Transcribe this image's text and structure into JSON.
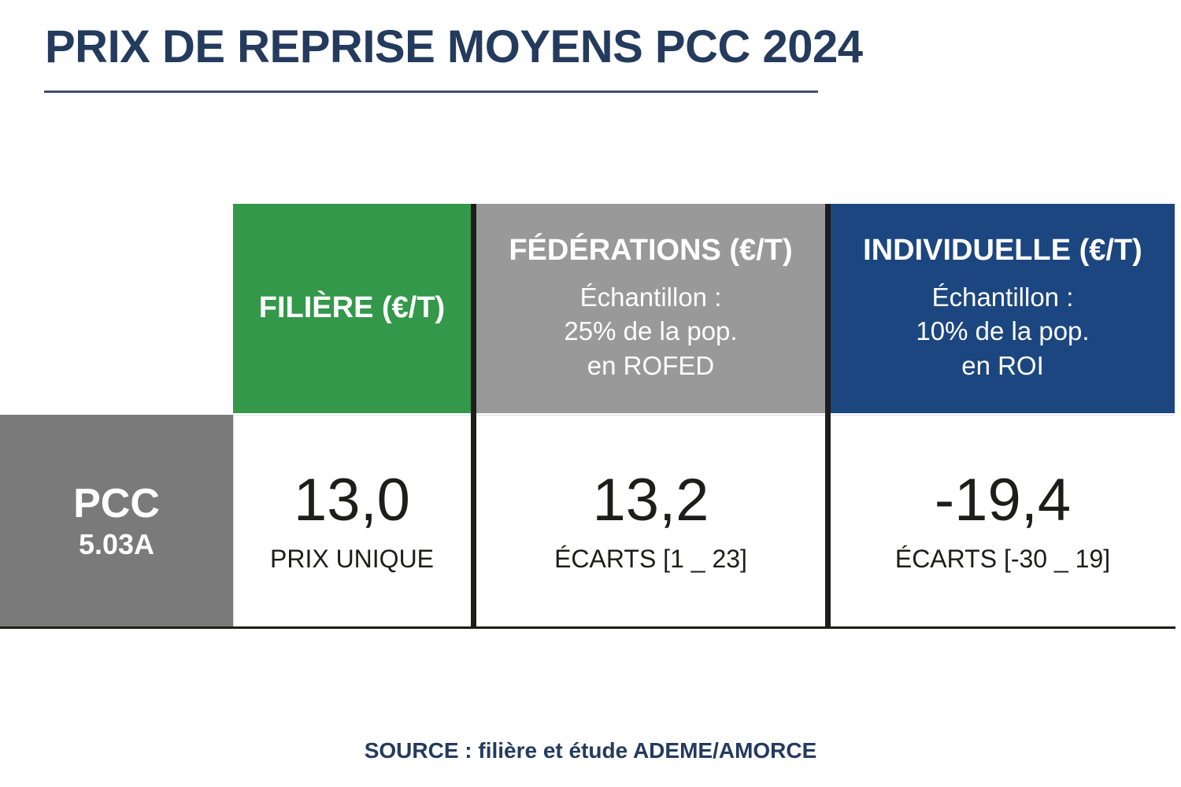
{
  "header": {
    "title": "PRIX DE REPRISE MOYENS PCC 2024"
  },
  "table": {
    "columns": [
      {
        "label": "FILIÈRE (€/T)",
        "color": "#33984a",
        "subtitle_lines": []
      },
      {
        "label": "FÉDÉRATIONS (€/T)",
        "color": "#999999",
        "subtitle_lines": [
          "Échantillon :",
          "25% de la pop.",
          "en ROFED"
        ]
      },
      {
        "label": "INDIVIDUELLE (€/T)",
        "color": "#1c4680",
        "subtitle_lines": [
          "Échantillon :",
          "10% de la pop.",
          "en ROI"
        ]
      }
    ],
    "row": {
      "label": "PCC",
      "sublabel": "5.03A",
      "label_bg": "#7a7a7a",
      "cells": [
        {
          "value": "13,0",
          "note": "PRIX UNIQUE"
        },
        {
          "value": "13,2",
          "note": "ÉCARTS [1 _ 23]"
        },
        {
          "value": "-19,4",
          "note": "ÉCARTS [-30 _ 19]"
        }
      ]
    },
    "divider_color": "#1d1d1b"
  },
  "footer": {
    "source": "SOURCE : filière et étude ADEME/AMORCE"
  },
  "colors": {
    "title_navy": "#243b5e",
    "underline": "#3e5070",
    "green": "#33984a",
    "header_gray": "#999999",
    "blue": "#1c4680",
    "row_label_gray": "#7a7a7a",
    "divider_dark": "#1d1d1b",
    "value_text": "#1d1d1b"
  },
  "chart_data": {
    "type": "table",
    "title": "PRIX DE REPRISE MOYENS PCC 2024",
    "columns": [
      "FILIÈRE (€/T)",
      "FÉDÉRATIONS (€/T)",
      "INDIVIDUELLE (€/T)"
    ],
    "column_subtitles": [
      "",
      "Échantillon : 25% de la pop. en ROFED",
      "Échantillon : 10% de la pop. en ROI"
    ],
    "rows": [
      {
        "label": "PCC 5.03A",
        "values": [
          13.0,
          13.2,
          -19.4
        ],
        "notes": [
          "PRIX UNIQUE",
          "ÉCARTS [1 _ 23]",
          "ÉCARTS [-30 _ 19]"
        ]
      }
    ],
    "source": "SOURCE : filière et étude ADEME/AMORCE"
  }
}
